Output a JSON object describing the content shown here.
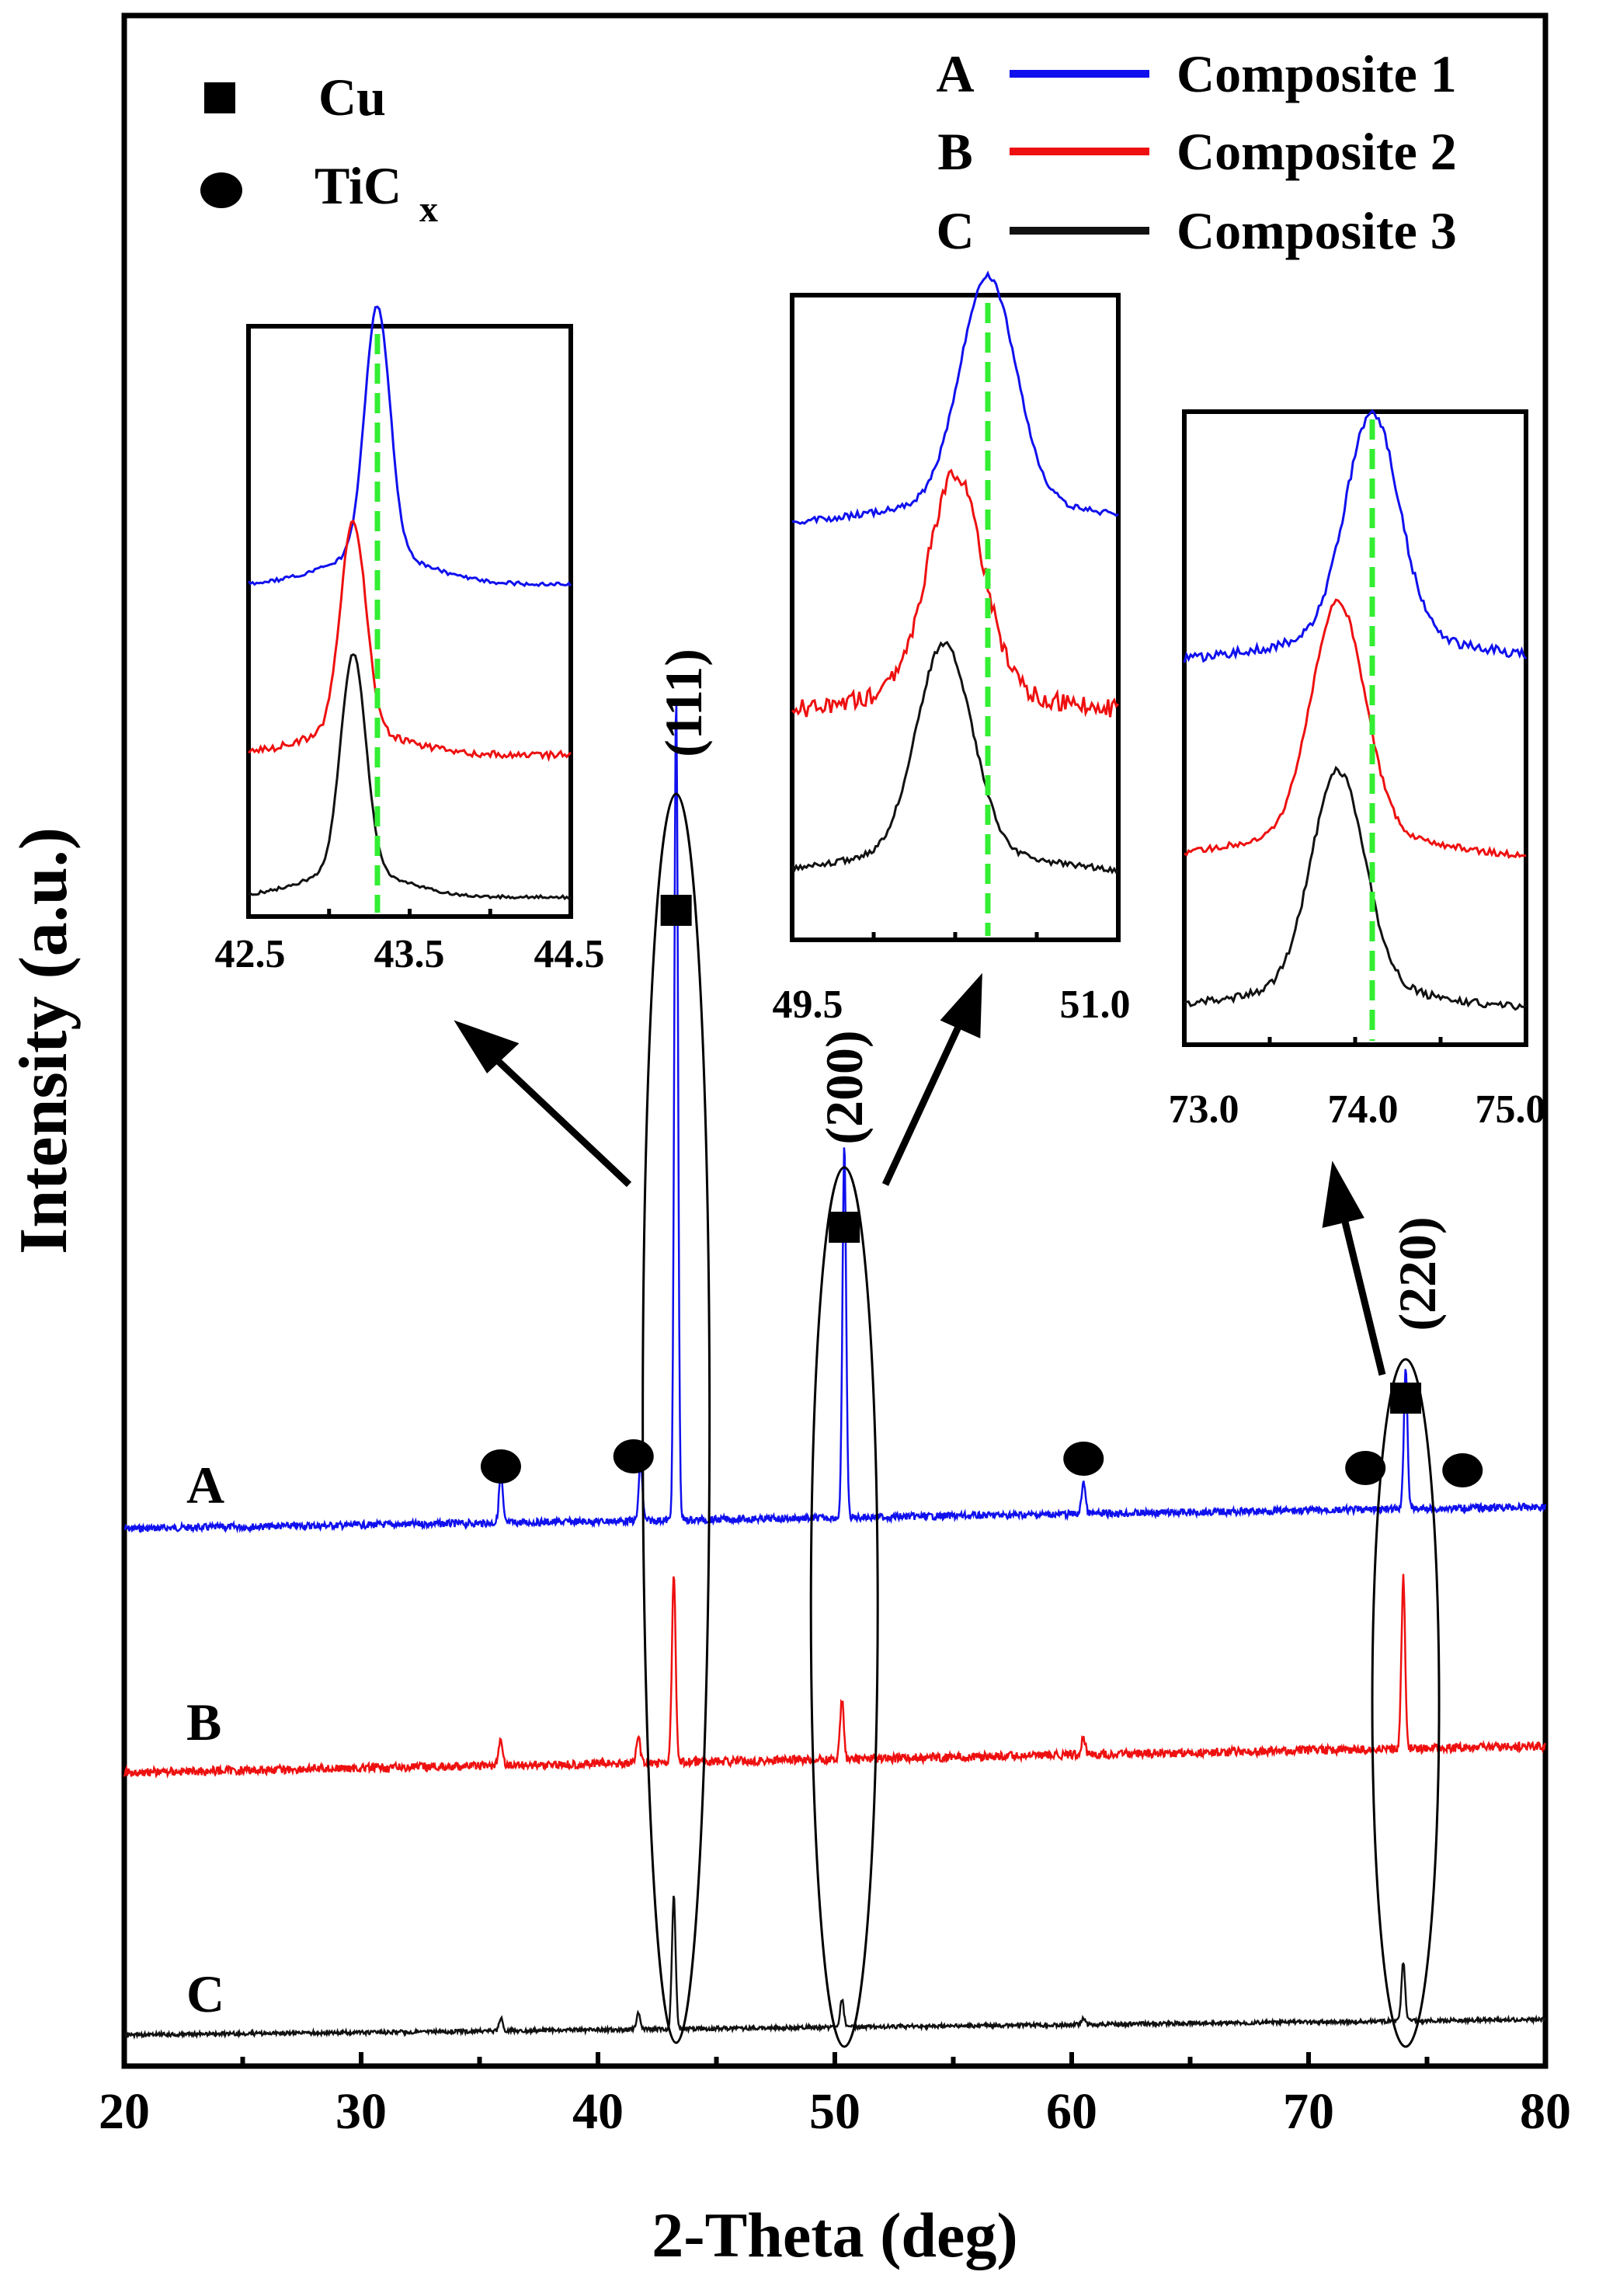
{
  "chart_data": {
    "type": "line",
    "xlabel": "2-Theta (deg)",
    "ylabel": "Intensity (a.u.)",
    "xlim": [
      20,
      80
    ],
    "xticks": [
      20,
      30,
      40,
      50,
      60,
      70,
      80
    ],
    "colors": {
      "A": "#1010ee",
      "B": "#ee1010",
      "C": "#111111",
      "ref_line": "#33ee33"
    },
    "legend": {
      "phases": [
        {
          "symbol": "square",
          "label": "Cu"
        },
        {
          "symbol": "circle",
          "label": "TiC",
          "subscript": "x"
        }
      ],
      "series": [
        {
          "letter": "A",
          "name": "Composite 1"
        },
        {
          "letter": "B",
          "name": "Composite 2"
        },
        {
          "letter": "C",
          "name": "Composite 3"
        }
      ]
    },
    "series": [
      {
        "name": "Composite 1",
        "letter": "A",
        "peaks": [
          {
            "x": 35.9,
            "h": 0.06
          },
          {
            "x": 41.8,
            "h": 0.07
          },
          {
            "x": 43.3,
            "h": 1.0
          },
          {
            "x": 50.4,
            "h": 0.45
          },
          {
            "x": 60.5,
            "h": 0.04
          },
          {
            "x": 74.1,
            "h": 0.17
          }
        ]
      },
      {
        "name": "Composite 2",
        "letter": "B",
        "peaks": [
          {
            "x": 35.9,
            "h": 0.06
          },
          {
            "x": 41.7,
            "h": 0.06
          },
          {
            "x": 43.2,
            "h": 0.42
          },
          {
            "x": 50.3,
            "h": 0.13
          },
          {
            "x": 60.5,
            "h": 0.04
          },
          {
            "x": 74.0,
            "h": 0.38
          }
        ]
      },
      {
        "name": "Composite 3",
        "letter": "C",
        "peaks": [
          {
            "x": 35.9,
            "h": 0.04
          },
          {
            "x": 41.7,
            "h": 0.05
          },
          {
            "x": 43.2,
            "h": 0.43
          },
          {
            "x": 50.3,
            "h": 0.09
          },
          {
            "x": 60.5,
            "h": 0.02
          },
          {
            "x": 74.0,
            "h": 0.19
          }
        ]
      }
    ],
    "peak_labels": [
      "(111)",
      "(200)",
      "(220)"
    ],
    "cu_markers_x": [
      43.3,
      50.4,
      74.1
    ],
    "tic_markers_x": [
      35.9,
      41.5,
      60.5,
      72.4,
      76.5
    ],
    "insets": [
      {
        "peak": "(111)",
        "xlim": [
          42.5,
          44.5
        ],
        "tick_labels": [
          "42.5",
          "43.5",
          "44.5"
        ],
        "ref_x": 43.3,
        "centers": {
          "A": 43.3,
          "B": 43.15,
          "C": 43.15
        }
      },
      {
        "peak": "(200)",
        "xlim": [
          49.5,
          51.0
        ],
        "tick_labels": [
          "49.5",
          "51.0"
        ],
        "ref_x": 50.4,
        "centers": {
          "A": 50.4,
          "B": 50.25,
          "C": 50.2
        }
      },
      {
        "peak": "(220)",
        "xlim": [
          73.0,
          75.0
        ],
        "tick_labels": [
          "73.0",
          "74.0",
          "75.0"
        ],
        "ref_x": 74.1,
        "centers": {
          "A": 74.1,
          "B": 73.9,
          "C": 73.9
        }
      }
    ]
  }
}
